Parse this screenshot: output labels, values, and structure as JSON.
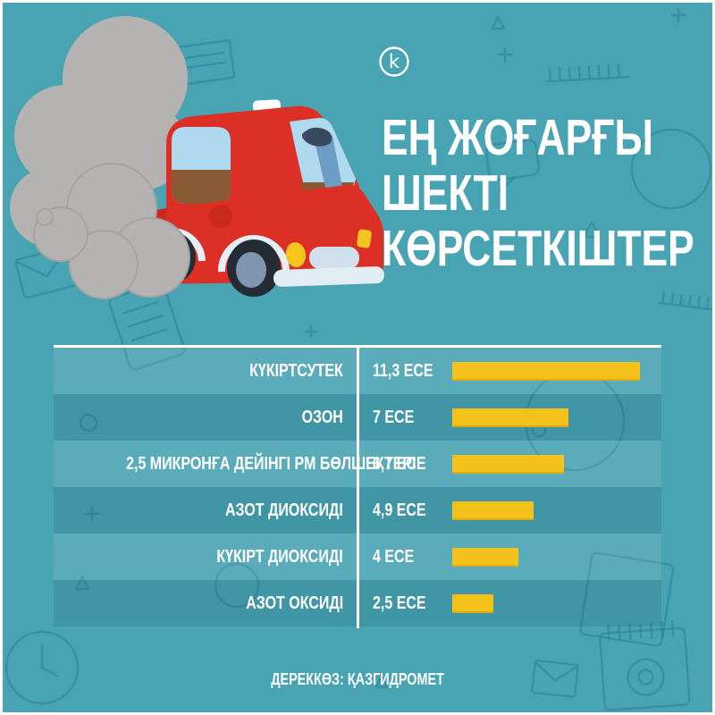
{
  "brand": {
    "logo_letter": "k"
  },
  "title": {
    "lines": [
      "ЕҢ ЖОҒАРҒЫ",
      "ШЕКТІ",
      "КӨРСЕТКІШТЕР"
    ]
  },
  "chart_data": {
    "type": "bar",
    "orientation": "horizontal",
    "title": "ЕҢ ЖОҒАРҒЫ ШЕКТІ КӨРСЕТКІШТЕР",
    "unit_suffix": "ЕСЕ",
    "categories": [
      "КҮКІРТСУТЕК",
      "ОЗОН",
      "2,5 МИКРОНҒА ДЕЙІНГІ PM БӨЛШЕКТЕРІ",
      "АЗОТ ДИОКСИДІ",
      "КҮКІРТ ДИОКСИДІ",
      "АЗОТ ОКСИДІ"
    ],
    "values": [
      11.3,
      7,
      6.7,
      4.9,
      4,
      2.5
    ],
    "value_labels": [
      "11,3 ЕСЕ",
      "7 ЕСЕ",
      "6,7 ЕСЕ",
      "4,9 ЕСЕ",
      "4 ЕСЕ",
      "2,5 ЕСЕ"
    ],
    "xlim": [
      0,
      11.3
    ],
    "grid": false,
    "legend_position": "none",
    "bar_color": "#f5c11b"
  },
  "footer": {
    "source_label": "ДЕРЕККӨЗ: ҚАЗГИДРОМЕТ"
  },
  "colors": {
    "background": "#48a3b3",
    "bar": "#f5c11b",
    "text": "#ffffff",
    "row_light": "rgba(255,255,255,0.10)",
    "row_dark": "rgba(0,35,45,0.10)",
    "smoke": "#b5b3b1",
    "car_red": "#dc3026"
  },
  "illustrations": {
    "car": "red-cartoon-car-illustration",
    "smoke": "exhaust-smoke-cloud",
    "logo": "k-circle-logo",
    "pattern": "office-doodle-pattern"
  }
}
